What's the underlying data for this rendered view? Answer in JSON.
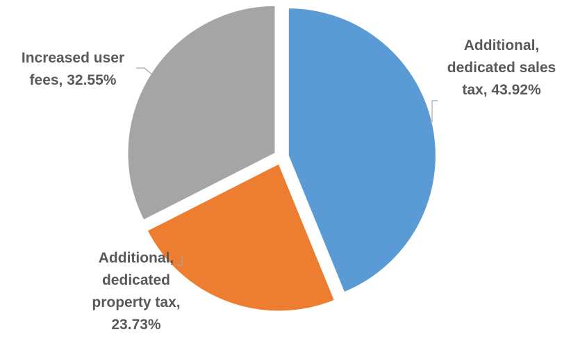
{
  "chart_data": {
    "type": "pie",
    "title": "",
    "slices": [
      {
        "label": "Additional, dedicated sales tax",
        "value": 43.92,
        "color": "#5b9bd5",
        "data_label": [
          "Additional,",
          "dedicated sales",
          "tax, 43.92%"
        ]
      },
      {
        "label": "Additional, dedicated property tax",
        "value": 23.73,
        "color": "#ed7d31",
        "data_label": [
          "Additional,",
          "dedicated",
          "property tax,",
          "23.73%"
        ]
      },
      {
        "label": "Increased user fees",
        "value": 32.55,
        "color": "#a5a5a5",
        "data_label": [
          "Increased user",
          "fees, 32.55%"
        ]
      }
    ],
    "start_angle": "12 o'clock",
    "direction": "clockwise",
    "exploded": true,
    "legend": "none"
  }
}
